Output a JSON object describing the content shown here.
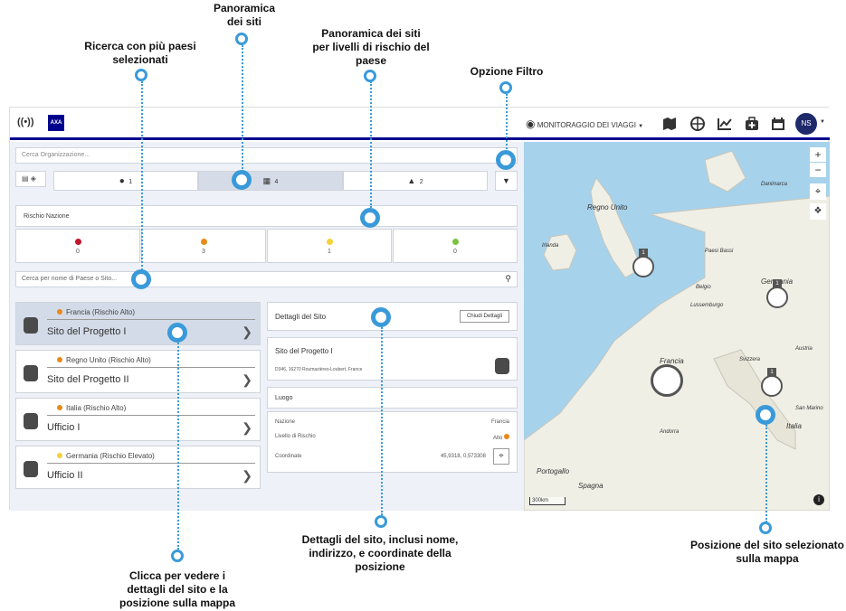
{
  "annotations": {
    "sites_overview": "Panoramica\ndei siti",
    "sites_by_risk": "Panoramica dei siti\nper livelli di rischio del\npaese",
    "multi_country_search": "Ricerca con più paesi\nselezionati",
    "filter_option": "Opzione Filtro",
    "click_details": "Clicca per vedere i\ndettagli del sito e la\nposizione sulla mappa",
    "site_details": "Dettagli del sito, inclusi nome,\nindirizzo, e coordinate della\nposizione",
    "selected_position": "Posizione del sito selezionato\nsulla mappa"
  },
  "topbar": {
    "monitor_label": "MONITORAGGIO DEI VIAGGI",
    "avatar": "NS"
  },
  "search": {
    "org_placeholder": "Cerca Organizzazione...",
    "site_placeholder": "Cerca per nome di Paese o Sito..."
  },
  "counts": {
    "people": "1",
    "sites": "4",
    "alerts": "2"
  },
  "risk": {
    "title": "Rischio Nazione",
    "levels": [
      {
        "color": "#c0152b",
        "count": "0"
      },
      {
        "color": "#e88a1a",
        "count": "3"
      },
      {
        "color": "#f3d23b",
        "count": "1"
      },
      {
        "color": "#7cc242",
        "count": "0"
      }
    ]
  },
  "sites": [
    {
      "country": "Francia (Rischio Alto)",
      "color": "#e88a1a",
      "name": "Sito del Progetto I"
    },
    {
      "country": "Regno Unito (Rischio Alto)",
      "color": "#e88a1a",
      "name": "Sito del Progetto II"
    },
    {
      "country": "Italia (Rischio Alto)",
      "color": "#e88a1a",
      "name": "Ufficio I"
    },
    {
      "country": "Germania (Rischio Elevato)",
      "color": "#f3d23b",
      "name": "Ufficio II"
    }
  ],
  "details": {
    "title": "Dettagli del Sito",
    "close_label": "Chiudi Dettagli",
    "site_name": "Sito del Progetto I",
    "address": "D346, 16270 Roumazières-Loubert, France",
    "location_title": "Luogo",
    "nation_label": "Nazione",
    "nation_value": "Francia",
    "risk_label": "Livello di Rischio",
    "risk_value": "Alto",
    "coords_label": "Coordinate",
    "coords_value": "45,9318, 0,573308"
  },
  "map": {
    "labels": [
      "Regno Unito",
      "Irlanda",
      "Danimarca",
      "Paesi Bassi",
      "Belgio",
      "Lussemburgo",
      "Germania",
      "Francia",
      "Svizzera",
      "Austria",
      "Italia",
      "San Marino",
      "Andorra",
      "Portogallo",
      "Spagna"
    ],
    "scale": "300km",
    "zoom_in": "+",
    "zoom_out": "−",
    "cluster_count": "1"
  }
}
